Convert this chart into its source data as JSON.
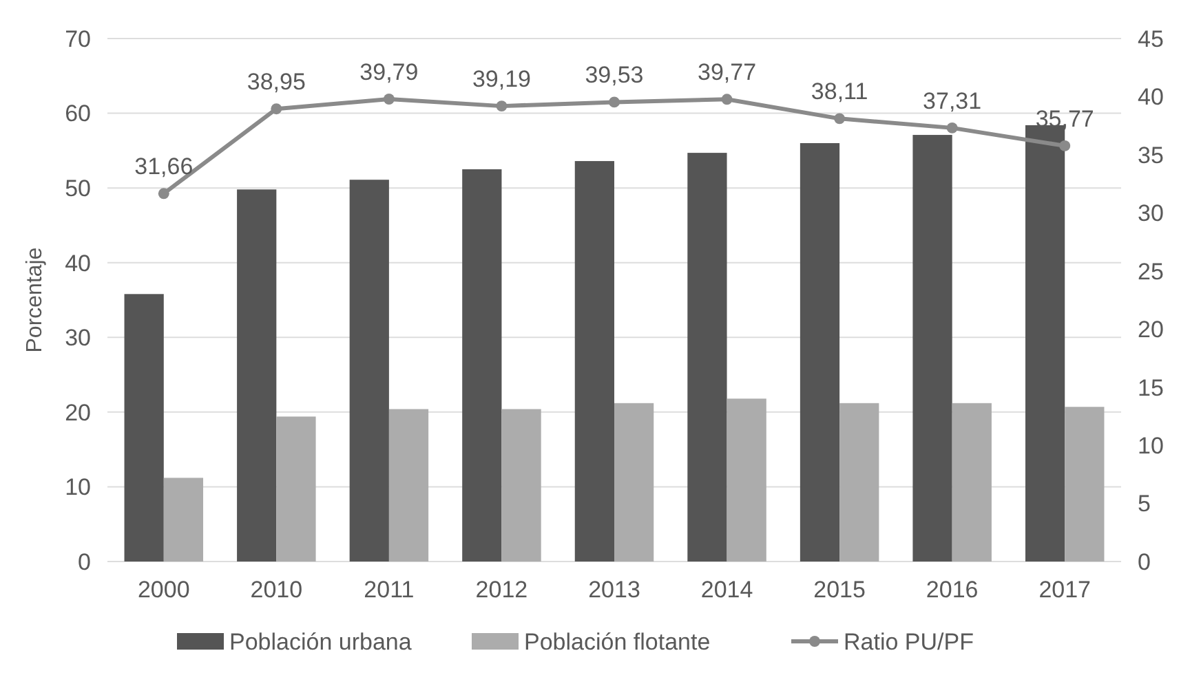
{
  "chart_data": {
    "type": "bar",
    "ylabel": "Porcentaje",
    "categories": [
      "2000",
      "2010",
      "2011",
      "2012",
      "2013",
      "2014",
      "2015",
      "2016",
      "2017"
    ],
    "series": [
      {
        "name": "Población urbana",
        "color": "#555555",
        "values": [
          35.8,
          49.8,
          51.1,
          52.5,
          53.6,
          54.7,
          56.0,
          57.1,
          58.4
        ]
      },
      {
        "name": "Población flotante",
        "color": "#acacac",
        "values": [
          11.2,
          19.4,
          20.4,
          20.4,
          21.2,
          21.8,
          21.2,
          21.2,
          20.7
        ]
      },
      {
        "name": "Ratio PU/PF",
        "type": "line",
        "axis": "y2",
        "color": "#8a8a8a",
        "marker": "circle",
        "data_labels": true,
        "values": [
          31.66,
          38.95,
          39.79,
          39.19,
          39.53,
          39.77,
          38.11,
          37.31,
          35.77
        ],
        "value_labels": [
          "31,66",
          "38,95",
          "39,79",
          "39,19",
          "39,53",
          "39,77",
          "38,11",
          "37,31",
          "35,77"
        ]
      }
    ],
    "ylim": [
      0,
      70
    ],
    "yticks": [
      0,
      10,
      20,
      30,
      40,
      50,
      60,
      70
    ],
    "y2lim": [
      0,
      45
    ],
    "y2ticks": [
      0,
      5,
      10,
      15,
      20,
      25,
      30,
      35,
      40,
      45
    ],
    "grid": "y",
    "legend": "bottom"
  }
}
